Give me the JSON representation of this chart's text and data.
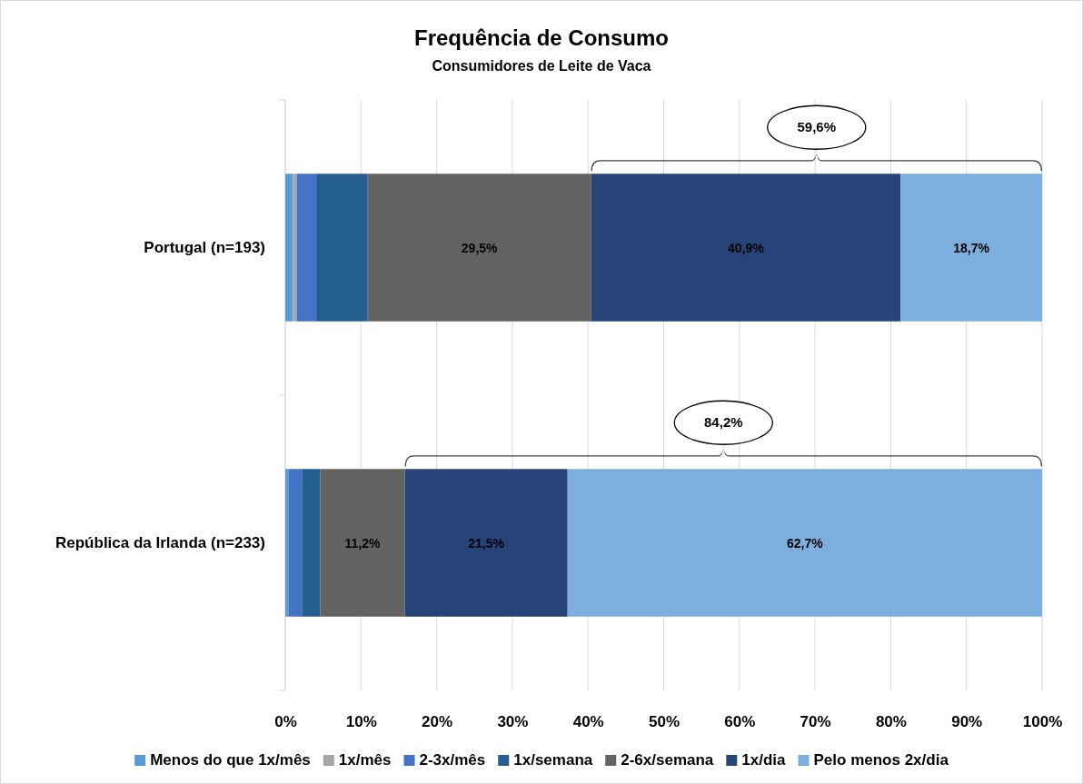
{
  "chart_data": {
    "type": "bar",
    "orientation": "horizontal",
    "stacked": true,
    "title": "Frequência de Consumo",
    "subtitle": "Consumidores de Leite de Vaca",
    "categories": [
      "Portugal (n=193)",
      "República da Irlanda (n=233)"
    ],
    "series": [
      {
        "name": "Menos do que 1x/mês",
        "color": "#5b9bd5",
        "values": [
          1.0,
          0.4
        ],
        "value_labels": [
          null,
          null
        ]
      },
      {
        "name": "1x/mês",
        "color": "#a5a5a5",
        "values": [
          0.5,
          0
        ],
        "value_labels": [
          null,
          null
        ]
      },
      {
        "name": "2-3x/mês",
        "color": "#4472c4",
        "values": [
          2.6,
          1.8
        ],
        "value_labels": [
          null,
          null
        ]
      },
      {
        "name": "1x/semana",
        "color": "#255e91",
        "values": [
          6.8,
          2.4
        ],
        "value_labels": [
          null,
          null
        ]
      },
      {
        "name": "2-6x/semana",
        "color": "#636363",
        "values": [
          29.5,
          11.2
        ],
        "value_labels": [
          "29,5%",
          "11,2%"
        ]
      },
      {
        "name": "1x/dia",
        "color": "#264478",
        "values": [
          40.9,
          21.5
        ],
        "value_labels": [
          "40,9%",
          "21,5%"
        ]
      },
      {
        "name": "Pelo menos 2x/dia",
        "color": "#7cafdd",
        "values": [
          18.7,
          62.7
        ],
        "value_labels": [
          "18,7%",
          "62,7%"
        ]
      }
    ],
    "xlim": [
      0,
      100
    ],
    "xticks": [
      {
        "value": 0,
        "label": "0%"
      },
      {
        "value": 10,
        "label": "10%"
      },
      {
        "value": 20,
        "label": "20%"
      },
      {
        "value": 30,
        "label": "30%"
      },
      {
        "value": 40,
        "label": "40%"
      },
      {
        "value": 50,
        "label": "50%"
      },
      {
        "value": 60,
        "label": "60%"
      },
      {
        "value": 70,
        "label": "70%"
      },
      {
        "value": 80,
        "label": "80%"
      },
      {
        "value": 90,
        "label": "90%"
      },
      {
        "value": 100,
        "label": "100%"
      }
    ],
    "grid": "x",
    "legend": "bottom",
    "annotations": [
      "59,6%",
      "84,2%"
    ]
  }
}
